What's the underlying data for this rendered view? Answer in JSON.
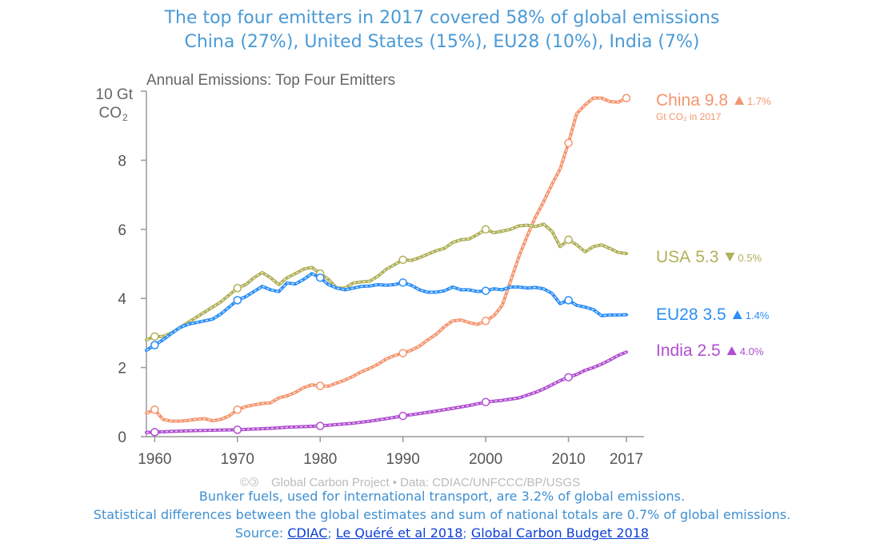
{
  "slide": {
    "title_line1": "The top four emitters in 2017 covered 58% of global emissions",
    "title_line2": "China (27%), United States (15%), EU28 (10%), India (7%)",
    "footer_line1": "Bunker fuels, used for international transport, are 3.2% of global emissions.",
    "footer_line2": "Statistical differences between the global estimates and sum of national totals are 0.7% of global emissions.",
    "source_label": "Source: ",
    "source_links": [
      "CDIAC",
      "Le Quéré et al 2018",
      "Global Carbon Budget 2018"
    ],
    "source_separator": "; "
  },
  "chart_data": {
    "type": "line",
    "title": "Annual Emissions: Top Four Emitters",
    "ylabel_line1": "10 Gt",
    "ylabel_line2": "CO",
    "ylabel_subscript": "2",
    "xlim": [
      1959,
      2017
    ],
    "ylim": [
      0,
      10
    ],
    "x_ticks": [
      1960,
      1970,
      1980,
      1990,
      2000,
      2010,
      2017
    ],
    "y_ticks": [
      0,
      2,
      4,
      6,
      8
    ],
    "grid": false,
    "credit": "Global Carbon Project  •  Data: CDIAC/UNFCCC/BP/USGS",
    "credit_icons": "©🄯",
    "label_unit_note": "Gt CO₂ in 2017",
    "series": [
      {
        "name": "China",
        "label_value": "9.8",
        "change": "1.7%",
        "direction": "up",
        "color": "#f4956f",
        "x": [
          1959,
          1960,
          1961,
          1962,
          1963,
          1964,
          1965,
          1966,
          1967,
          1968,
          1969,
          1970,
          1971,
          1972,
          1973,
          1974,
          1975,
          1976,
          1977,
          1978,
          1979,
          1980,
          1981,
          1982,
          1983,
          1984,
          1985,
          1986,
          1987,
          1988,
          1989,
          1990,
          1991,
          1992,
          1993,
          1994,
          1995,
          1996,
          1997,
          1998,
          1999,
          2000,
          2001,
          2002,
          2003,
          2004,
          2005,
          2006,
          2007,
          2008,
          2009,
          2010,
          2011,
          2012,
          2013,
          2014,
          2015,
          2016,
          2017
        ],
        "values": [
          0.68,
          0.78,
          0.5,
          0.45,
          0.45,
          0.47,
          0.5,
          0.52,
          0.46,
          0.5,
          0.6,
          0.78,
          0.87,
          0.92,
          0.96,
          0.98,
          1.12,
          1.18,
          1.28,
          1.42,
          1.5,
          1.47,
          1.46,
          1.55,
          1.64,
          1.75,
          1.88,
          1.98,
          2.1,
          2.25,
          2.35,
          2.42,
          2.5,
          2.62,
          2.8,
          2.96,
          3.18,
          3.35,
          3.38,
          3.3,
          3.25,
          3.35,
          3.5,
          3.8,
          4.5,
          5.2,
          5.8,
          6.35,
          6.8,
          7.3,
          7.75,
          8.5,
          9.35,
          9.6,
          9.8,
          9.8,
          9.7,
          9.68,
          9.8
        ],
        "markers": [
          [
            1960,
            0.78
          ],
          [
            1970,
            0.78
          ],
          [
            1980,
            1.47
          ],
          [
            1990,
            2.42
          ],
          [
            2000,
            3.35
          ],
          [
            2010,
            8.5
          ],
          [
            2017,
            9.8
          ]
        ]
      },
      {
        "name": "USA",
        "label_value": "5.3",
        "change": "0.5%",
        "direction": "down",
        "color": "#b0b05a",
        "x": [
          1959,
          1960,
          1961,
          1962,
          1963,
          1964,
          1965,
          1966,
          1967,
          1968,
          1969,
          1970,
          1971,
          1972,
          1973,
          1974,
          1975,
          1976,
          1977,
          1978,
          1979,
          1980,
          1981,
          1982,
          1983,
          1984,
          1985,
          1986,
          1987,
          1988,
          1989,
          1990,
          1991,
          1992,
          1993,
          1994,
          1995,
          1996,
          1997,
          1998,
          1999,
          2000,
          2001,
          2002,
          2003,
          2004,
          2005,
          2006,
          2007,
          2008,
          2009,
          2010,
          2011,
          2012,
          2013,
          2014,
          2015,
          2016,
          2017
        ],
        "values": [
          2.8,
          2.9,
          2.9,
          3.0,
          3.15,
          3.3,
          3.45,
          3.6,
          3.75,
          3.9,
          4.1,
          4.3,
          4.4,
          4.6,
          4.75,
          4.6,
          4.4,
          4.6,
          4.72,
          4.85,
          4.9,
          4.72,
          4.55,
          4.3,
          4.3,
          4.45,
          4.48,
          4.5,
          4.65,
          4.85,
          4.98,
          5.12,
          5.1,
          5.18,
          5.28,
          5.38,
          5.45,
          5.62,
          5.7,
          5.72,
          5.85,
          6.0,
          5.9,
          5.95,
          6.0,
          6.1,
          6.12,
          6.08,
          6.15,
          5.95,
          5.5,
          5.7,
          5.55,
          5.35,
          5.5,
          5.55,
          5.45,
          5.33,
          5.3
        ],
        "markers": [
          [
            1960,
            2.9
          ],
          [
            1970,
            4.3
          ],
          [
            1980,
            4.72
          ],
          [
            1990,
            5.12
          ],
          [
            2000,
            6.0
          ],
          [
            2010,
            5.7
          ]
        ]
      },
      {
        "name": "EU28",
        "label_value": "3.5",
        "change": "1.4%",
        "direction": "up",
        "color": "#2b8ef5",
        "x": [
          1959,
          1960,
          1961,
          1962,
          1963,
          1964,
          1965,
          1966,
          1967,
          1968,
          1969,
          1970,
          1971,
          1972,
          1973,
          1974,
          1975,
          1976,
          1977,
          1978,
          1979,
          1980,
          1981,
          1982,
          1983,
          1984,
          1985,
          1986,
          1987,
          1988,
          1989,
          1990,
          1991,
          1992,
          1993,
          1994,
          1995,
          1996,
          1997,
          1998,
          1999,
          2000,
          2001,
          2002,
          2003,
          2004,
          2005,
          2006,
          2007,
          2008,
          2009,
          2010,
          2011,
          2012,
          2013,
          2014,
          2015,
          2016,
          2017
        ],
        "values": [
          2.5,
          2.65,
          2.8,
          2.98,
          3.15,
          3.25,
          3.3,
          3.35,
          3.4,
          3.55,
          3.75,
          3.95,
          4.05,
          4.2,
          4.35,
          4.25,
          4.2,
          4.45,
          4.42,
          4.55,
          4.72,
          4.6,
          4.4,
          4.3,
          4.25,
          4.3,
          4.35,
          4.36,
          4.4,
          4.38,
          4.4,
          4.46,
          4.38,
          4.25,
          4.18,
          4.18,
          4.22,
          4.33,
          4.25,
          4.25,
          4.2,
          4.22,
          4.28,
          4.25,
          4.33,
          4.33,
          4.3,
          4.32,
          4.28,
          4.15,
          3.85,
          3.95,
          3.8,
          3.75,
          3.68,
          3.5,
          3.52,
          3.52,
          3.53
        ],
        "markers": [
          [
            1960,
            2.65
          ],
          [
            1970,
            3.95
          ],
          [
            1980,
            4.6
          ],
          [
            1990,
            4.46
          ],
          [
            2000,
            4.22
          ],
          [
            2010,
            3.95
          ]
        ]
      },
      {
        "name": "India",
        "label_value": "2.5",
        "change": "4.0%",
        "direction": "up",
        "color": "#b04fd0",
        "x": [
          1959,
          1960,
          1962,
          1964,
          1966,
          1968,
          1970,
          1972,
          1974,
          1976,
          1978,
          1980,
          1982,
          1984,
          1986,
          1988,
          1990,
          1992,
          1994,
          1996,
          1998,
          2000,
          2002,
          2004,
          2006,
          2007,
          2008,
          2009,
          2010,
          2011,
          2012,
          2013,
          2014,
          2015,
          2016,
          2017
        ],
        "values": [
          0.12,
          0.13,
          0.15,
          0.17,
          0.18,
          0.19,
          0.2,
          0.22,
          0.24,
          0.27,
          0.29,
          0.31,
          0.35,
          0.39,
          0.45,
          0.52,
          0.6,
          0.67,
          0.74,
          0.82,
          0.9,
          1.0,
          1.05,
          1.12,
          1.28,
          1.38,
          1.5,
          1.62,
          1.72,
          1.8,
          1.92,
          2.0,
          2.1,
          2.22,
          2.35,
          2.45
        ],
        "markers": [
          [
            1960,
            0.13
          ],
          [
            1970,
            0.2
          ],
          [
            1980,
            0.31
          ],
          [
            1990,
            0.6
          ],
          [
            2000,
            1.0
          ],
          [
            2010,
            1.72
          ]
        ]
      }
    ]
  }
}
